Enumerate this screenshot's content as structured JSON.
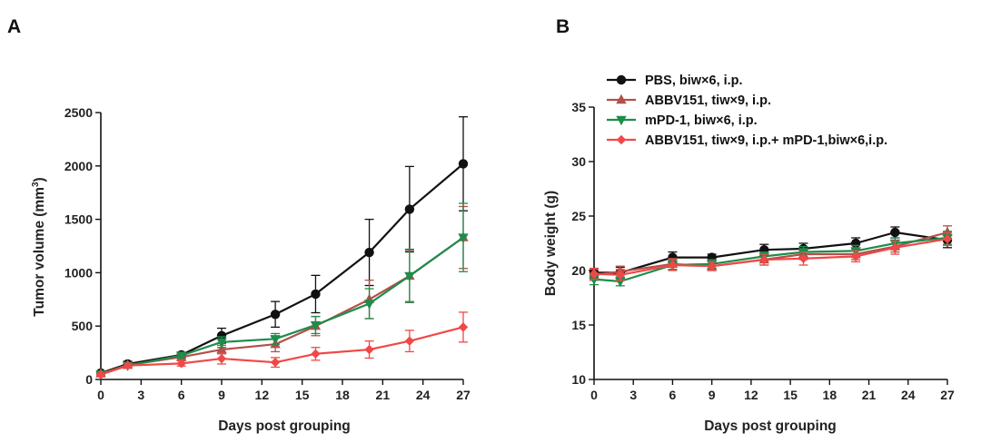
{
  "chart_data": [
    {
      "panel": "A",
      "type": "line",
      "xlabel": "Days post grouping",
      "ylabel": "Tumor volume (mm",
      "ylabel_sup": "3",
      "ylabel_suffix": ")",
      "xlim": [
        0,
        27
      ],
      "ylim": [
        0,
        2500
      ],
      "xticks": [
        0,
        3,
        6,
        9,
        12,
        15,
        18,
        21,
        24,
        27
      ],
      "yticks": [
        0,
        500,
        1000,
        1500,
        2000,
        2500
      ],
      "series": [
        {
          "key": "pbs",
          "color": "#111111",
          "marker": "circle",
          "x": [
            0,
            2,
            6,
            9,
            13,
            16,
            20,
            23,
            27
          ],
          "y": [
            60,
            145,
            230,
            410,
            610,
            800,
            1190,
            1595,
            2020
          ],
          "err": [
            15,
            25,
            25,
            70,
            120,
            175,
            310,
            400,
            440
          ]
        },
        {
          "key": "abbv",
          "color": "#b3504a",
          "marker": "triangle-up",
          "x": [
            0,
            2,
            6,
            9,
            13,
            16,
            20,
            23,
            27
          ],
          "y": [
            55,
            135,
            210,
            280,
            330,
            500,
            750,
            970,
            1330
          ],
          "err": [
            12,
            20,
            25,
            40,
            70,
            90,
            180,
            240,
            290
          ]
        },
        {
          "key": "mpd1",
          "color": "#1e8c4a",
          "marker": "triangle-down",
          "x": [
            0,
            2,
            6,
            9,
            13,
            16,
            20,
            23,
            27
          ],
          "y": [
            50,
            130,
            225,
            350,
            380,
            510,
            710,
            970,
            1330
          ],
          "err": [
            12,
            20,
            25,
            50,
            50,
            80,
            140,
            250,
            320
          ]
        },
        {
          "key": "combo",
          "color": "#f04848",
          "marker": "diamond",
          "x": [
            0,
            2,
            6,
            9,
            13,
            16,
            20,
            23,
            27
          ],
          "y": [
            45,
            130,
            150,
            195,
            160,
            240,
            280,
            360,
            490
          ],
          "err": [
            10,
            20,
            25,
            50,
            45,
            60,
            80,
            100,
            140
          ]
        }
      ]
    },
    {
      "panel": "B",
      "type": "line",
      "xlabel": "Days post grouping",
      "ylabel": "Body weight (g)",
      "xlim": [
        0,
        27
      ],
      "ylim": [
        10,
        35
      ],
      "xticks": [
        0,
        3,
        6,
        9,
        12,
        15,
        18,
        21,
        24,
        27
      ],
      "yticks": [
        10,
        15,
        20,
        25,
        30,
        35
      ],
      "series": [
        {
          "key": "pbs",
          "color": "#111111",
          "marker": "circle",
          "x": [
            0,
            2,
            6,
            9,
            13,
            16,
            20,
            23,
            27
          ],
          "y": [
            19.8,
            19.8,
            21.2,
            21.2,
            21.9,
            22.0,
            22.5,
            23.5,
            22.8
          ],
          "err": [
            0.4,
            0.5,
            0.5,
            0.3,
            0.5,
            0.5,
            0.5,
            0.5,
            0.7
          ]
        },
        {
          "key": "abbv",
          "color": "#b3504a",
          "marker": "triangle-up",
          "x": [
            0,
            2,
            6,
            9,
            13,
            16,
            20,
            23,
            27
          ],
          "y": [
            19.6,
            19.9,
            20.6,
            20.4,
            21.0,
            21.5,
            21.5,
            22.2,
            23.5
          ],
          "err": [
            0.5,
            0.5,
            0.5,
            0.4,
            0.5,
            0.5,
            0.5,
            0.5,
            0.6
          ]
        },
        {
          "key": "mpd1",
          "color": "#1e8c4a",
          "marker": "triangle-down",
          "x": [
            0,
            2,
            6,
            9,
            13,
            16,
            20,
            23,
            27
          ],
          "y": [
            19.2,
            19.0,
            20.5,
            20.6,
            21.3,
            21.7,
            21.8,
            22.5,
            23.0
          ],
          "err": [
            0.5,
            0.4,
            0.4,
            0.4,
            0.4,
            0.5,
            0.5,
            0.5,
            0.6
          ]
        },
        {
          "key": "combo",
          "color": "#f04848",
          "marker": "diamond",
          "x": [
            0,
            2,
            6,
            9,
            13,
            16,
            20,
            23,
            27
          ],
          "y": [
            19.7,
            19.6,
            20.5,
            20.4,
            21.0,
            21.1,
            21.3,
            22.1,
            22.9
          ],
          "err": [
            0.5,
            0.5,
            0.5,
            0.4,
            0.5,
            0.6,
            0.5,
            0.6,
            0.6
          ]
        }
      ]
    }
  ],
  "legend": {
    "placement": "top",
    "entries": [
      {
        "key": "pbs",
        "label": "PBS, biw×6, i.p.",
        "color": "#111111",
        "marker": "circle"
      },
      {
        "key": "abbv",
        "label": "ABBV151, tiw×9, i.p.",
        "color": "#b3504a",
        "marker": "triangle-up"
      },
      {
        "key": "mpd1",
        "label": "mPD-1, biw×6, i.p.",
        "color": "#1e8c4a",
        "marker": "triangle-down"
      },
      {
        "key": "combo",
        "label": "ABBV151, tiw×9, i.p.+ mPD-1,biw×6,i.p.",
        "color": "#f04848",
        "marker": "diamond"
      }
    ]
  }
}
